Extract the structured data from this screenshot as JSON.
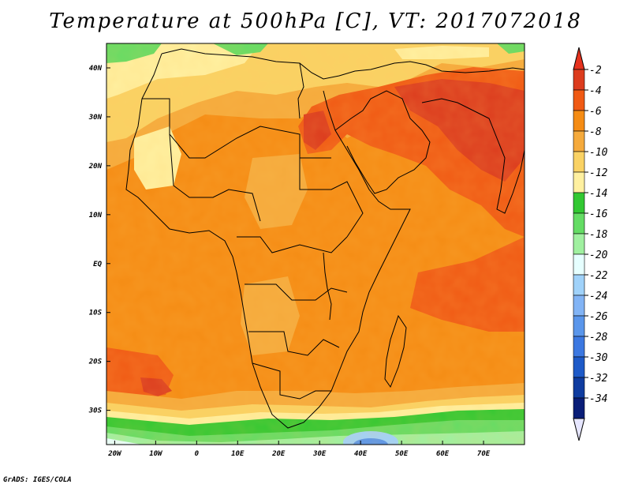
{
  "title": "Temperature at 500hPa [C], VT: 2017072018",
  "footer": "GrADS: IGES/COLA",
  "map": {
    "lon_range": [
      -22,
      80
    ],
    "lat_range": [
      -37,
      45
    ],
    "lon_ticks": [
      {
        "value": -20,
        "label": "20W"
      },
      {
        "value": -10,
        "label": "10W"
      },
      {
        "value": 0,
        "label": "0"
      },
      {
        "value": 10,
        "label": "10E"
      },
      {
        "value": 20,
        "label": "20E"
      },
      {
        "value": 30,
        "label": "30E"
      },
      {
        "value": 40,
        "label": "40E"
      },
      {
        "value": 50,
        "label": "50E"
      },
      {
        "value": 60,
        "label": "60E"
      },
      {
        "value": 70,
        "label": "70E"
      }
    ],
    "lat_ticks": [
      {
        "value": 40,
        "label": "40N"
      },
      {
        "value": 30,
        "label": "30N"
      },
      {
        "value": 20,
        "label": "20N"
      },
      {
        "value": 10,
        "label": "10N"
      },
      {
        "value": 0,
        "label": "EQ"
      },
      {
        "value": -10,
        "label": "10S"
      },
      {
        "value": -20,
        "label": "20S"
      },
      {
        "value": -30,
        "label": "30S"
      }
    ]
  },
  "colorbar": {
    "levels": [
      {
        "label": "-2",
        "color": "#dc3c1e"
      },
      {
        "label": "-4",
        "color": "#f05a14"
      },
      {
        "label": "-6",
        "color": "#f58c14"
      },
      {
        "label": "-8",
        "color": "#f5aa3c"
      },
      {
        "label": "-10",
        "color": "#fad264"
      },
      {
        "label": "-12",
        "color": "#fff0a0"
      },
      {
        "label": "-14",
        "color": "#32c832"
      },
      {
        "label": "-16",
        "color": "#64dc64"
      },
      {
        "label": "-18",
        "color": "#a0f0a0"
      },
      {
        "label": "-20",
        "color": "#e6ffff"
      },
      {
        "label": "-22",
        "color": "#a0d2fa"
      },
      {
        "label": "-24",
        "color": "#82b4f5"
      },
      {
        "label": "-26",
        "color": "#5a96eb"
      },
      {
        "label": "-28",
        "color": "#3c78e1"
      },
      {
        "label": "-30",
        "color": "#1e5ac8"
      },
      {
        "label": "-32",
        "color": "#0f3ca0"
      },
      {
        "label": "-34",
        "color": "#0a1e78"
      }
    ],
    "over_color": "#e6321e",
    "under_color": "#e6e6ff"
  }
}
